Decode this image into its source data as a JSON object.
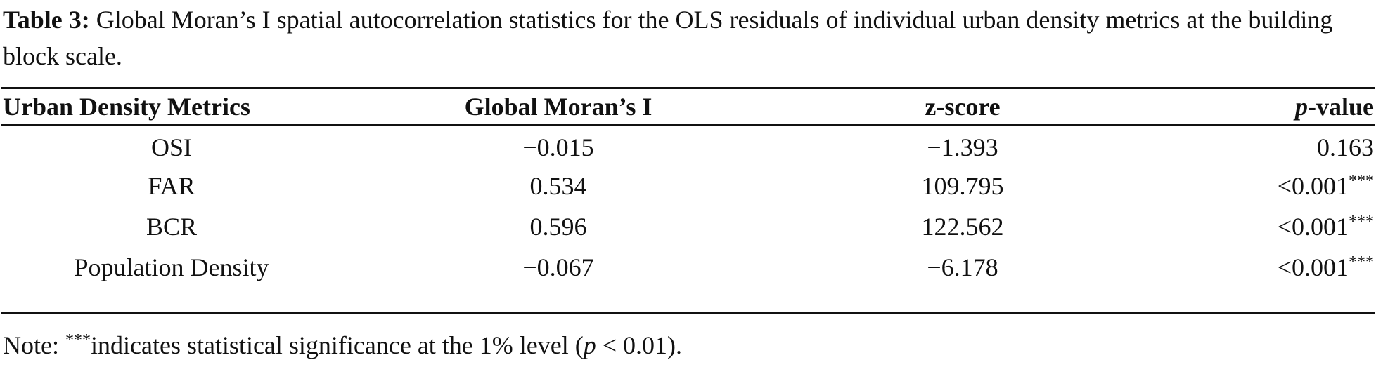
{
  "caption": {
    "label": "Table 3:",
    "text": "Global Moran’s I spatial autocorrelation statistics for the OLS residuals of individual urban density metrics at the building block scale."
  },
  "table": {
    "headers": {
      "metric": "Urban Density Metrics",
      "moran": "Global Moran’s I",
      "zscore": "z-score",
      "pvalue_italic": "p",
      "pvalue_rest": "-value"
    },
    "rows": [
      {
        "metric": "OSI",
        "moran": "−0.015",
        "zscore": "−1.393",
        "pvalue": "0.163",
        "stars": ""
      },
      {
        "metric": "FAR",
        "moran": "0.534",
        "zscore": "109.795",
        "pvalue": "<0.001",
        "stars": "***"
      },
      {
        "metric": "BCR",
        "moran": "0.596",
        "zscore": "122.562",
        "pvalue": "<0.001",
        "stars": "***"
      },
      {
        "metric": "Population Density",
        "moran": "−0.067",
        "zscore": "−6.178",
        "pvalue": "<0.001",
        "stars": "***"
      }
    ]
  },
  "note": {
    "prefix": "Note: ",
    "stars": "***",
    "text": "indicates statistical significance at the 1% level (",
    "p": "p",
    "condition": " < 0.01)."
  }
}
